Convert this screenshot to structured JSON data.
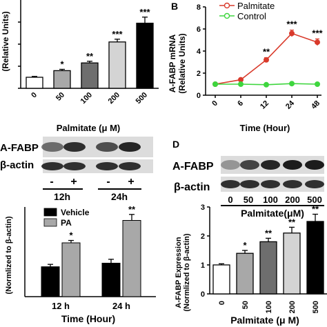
{
  "chart_data": [
    {
      "panel": "A",
      "type": "bar",
      "title": "",
      "xlabel": "Palmitate (μ M)",
      "ylabel": "(Relative Units)",
      "categories": [
        "0",
        "50",
        "100",
        "200",
        "500"
      ],
      "values": [
        1.0,
        1.6,
        2.3,
        4.2,
        5.9
      ],
      "errors": [
        0.08,
        0.12,
        0.15,
        0.25,
        0.55
      ],
      "significance": [
        "",
        "*",
        "**",
        "***",
        "***"
      ],
      "bar_colors": [
        "#ffffff",
        "#a8a8a8",
        "#6e6e6e",
        "#d4d4d4",
        "#000000"
      ],
      "ylim": [
        0,
        8
      ],
      "yticks": [
        "0",
        "2",
        "4",
        "6",
        "8"
      ]
    },
    {
      "panel": "B",
      "type": "line",
      "title": "",
      "xlabel": "Time (Hour)",
      "ylabel": "A-FABP mRNA",
      "ylabel2": "(Relative Units)",
      "x": [
        "0",
        "6",
        "12",
        "24",
        "48"
      ],
      "series": [
        {
          "name": "Palmitate",
          "color": "#d93a2b",
          "values": [
            1.0,
            1.4,
            3.2,
            5.6,
            4.8
          ],
          "errors": [
            0.05,
            0.1,
            0.2,
            0.3,
            0.3
          ]
        },
        {
          "name": "Control",
          "color": "#3ed63e",
          "values": [
            1.0,
            1.0,
            0.95,
            1.05,
            1.0
          ],
          "errors": [
            0.05,
            0.05,
            0.05,
            0.05,
            0.05
          ]
        }
      ],
      "significance": [
        "",
        "",
        "**",
        "***",
        "***"
      ],
      "ylim": [
        0,
        8
      ],
      "yticks": [
        "0",
        "2",
        "4",
        "6",
        "8"
      ],
      "legend_position": "top-left"
    },
    {
      "panel": "C",
      "type": "bar",
      "title": "",
      "xlabel": "Time (Hour)",
      "ylabel": "(Normlized to β-actin)",
      "categories": [
        "12 h",
        "24 h"
      ],
      "series": [
        {
          "name": "Vehicle",
          "color": "#000000",
          "values": [
            1.0,
            1.12
          ],
          "errors": [
            0.08,
            0.13
          ]
        },
        {
          "name": "PA",
          "color": "#a8a8a8",
          "values": [
            1.8,
            2.55
          ],
          "errors": [
            0.08,
            0.2
          ]
        }
      ],
      "significance": [
        "*",
        "**"
      ],
      "ylim": [
        0,
        3
      ],
      "legend_position": "top-left"
    },
    {
      "panel": "D",
      "type": "bar",
      "title": "",
      "xlabel": "Palmitate (μ M)",
      "ylabel": "A-FABP Expression",
      "ylabel2": "(Normlized to β-actin)",
      "categories": [
        "0",
        "50",
        "100",
        "200",
        "500"
      ],
      "values": [
        1.0,
        1.4,
        1.8,
        2.1,
        2.5
      ],
      "errors": [
        0.04,
        0.1,
        0.12,
        0.2,
        0.25
      ],
      "significance": [
        "",
        "*",
        "**",
        "**",
        "**"
      ],
      "bar_colors": [
        "#ffffff",
        "#a8a8a8",
        "#6e6e6e",
        "#d4d4d4",
        "#000000"
      ],
      "ylim": [
        0,
        3
      ],
      "yticks": [
        "0",
        "1",
        "2",
        "3"
      ]
    }
  ],
  "panel_labels": {
    "b": "B",
    "d": "D"
  },
  "blot_c": {
    "label_top": "A-FABP",
    "label_bottom": "β-actin",
    "treatment": [
      "-",
      "+",
      "-",
      "+"
    ],
    "times": [
      "12h",
      "24h"
    ]
  },
  "blot_d": {
    "label_top": "A-FABP",
    "label_bottom": "β-actin",
    "lanes": [
      "0",
      "50",
      "100",
      "200",
      "500"
    ],
    "xlabel": "Palmitate(μM)"
  }
}
